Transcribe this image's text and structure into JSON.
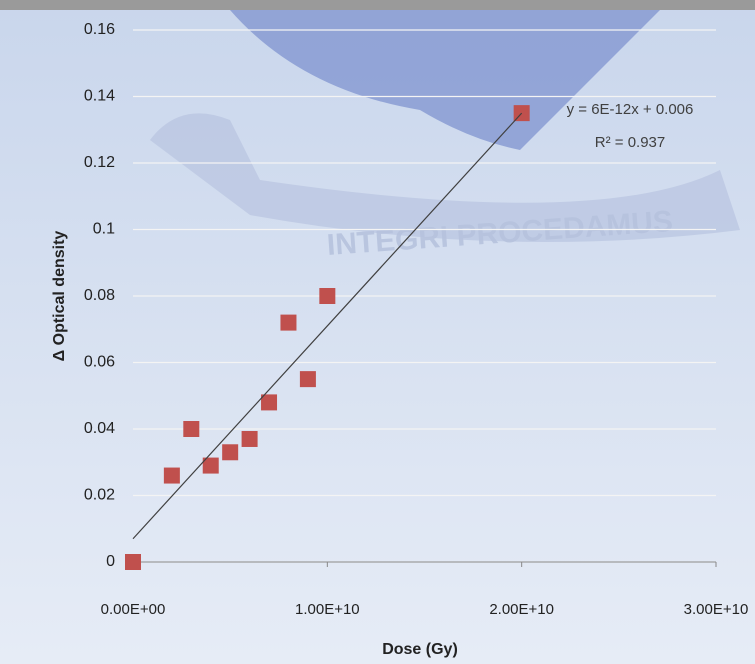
{
  "chart_data": {
    "type": "scatter",
    "x_label": "Dose (Gy)",
    "y_label": "Δ Optical density",
    "watermark": "INTEGRI PROCEDAMUS",
    "annotations": [
      "y = 6E-12x + 0.006",
      "R² = 0.937"
    ],
    "x": [
      0,
      2000000000,
      3000000000,
      4000000000,
      5000000000,
      6000000000,
      7000000000,
      8000000000,
      9000000000,
      10000000000,
      20000000000
    ],
    "values": [
      0,
      0.026,
      0.04,
      0.029,
      0.033,
      0.037,
      0.048,
      0.072,
      0.055,
      0.08,
      0.135
    ],
    "color": "#c0504d",
    "trendline": {
      "x": [
        0,
        20000000000
      ],
      "values": [
        0.007,
        0.135
      ],
      "color": "#404040"
    },
    "xlim": [
      0,
      30000000000
    ],
    "xticks": [
      {
        "value": 0,
        "label": "0.00E+00"
      },
      {
        "value": 10000000000,
        "label": "1.00E+10"
      },
      {
        "value": 20000000000,
        "label": "2.00E+10"
      },
      {
        "value": 30000000000,
        "label": "3.00E+10"
      }
    ],
    "ylim": [
      0,
      0.16
    ],
    "yticks": [
      0,
      0.02,
      0.04,
      0.06,
      0.08,
      0.1,
      0.12,
      0.14,
      0.16
    ],
    "grid": true
  }
}
